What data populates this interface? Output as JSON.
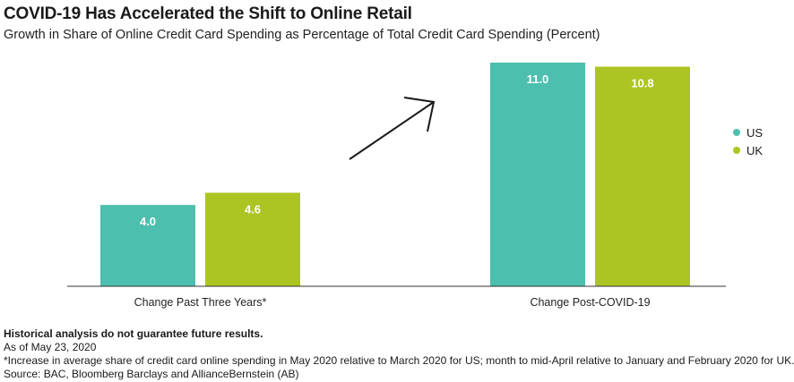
{
  "chart_data": {
    "type": "bar",
    "title": "COVID-19 Has Accelerated the Shift to Online Retail",
    "subtitle": "Growth in Share of Online Credit Card Spending as Percentage of Total Credit Card Spending (Percent)",
    "categories": [
      "Change Past Three Years*",
      "Change Post-COVID-19"
    ],
    "series": [
      {
        "name": "US",
        "values": [
          4.0,
          11.0
        ],
        "labels": [
          "4.0",
          "11.0"
        ],
        "color": "#4dbfae"
      },
      {
        "name": "UK",
        "values": [
          4.6,
          10.8
        ],
        "labels": [
          "4.6",
          "10.8"
        ],
        "color": "#adc523"
      }
    ],
    "ylim": [
      0,
      11.0
    ],
    "grid": false,
    "legend_position": "right",
    "annotation": "upward arrow"
  },
  "footnotes": {
    "disclaimer": "Historical analysis do not guarantee future results.",
    "date": "As of May 23, 2020",
    "note": "*Increase in average share of credit card online spending in May 2020 relative to March 2020 for US; month to mid-April relative to January and February 2020 for UK.",
    "source": "Source: BAC, Bloomberg Barclays and AllianceBernstein (AB)"
  }
}
